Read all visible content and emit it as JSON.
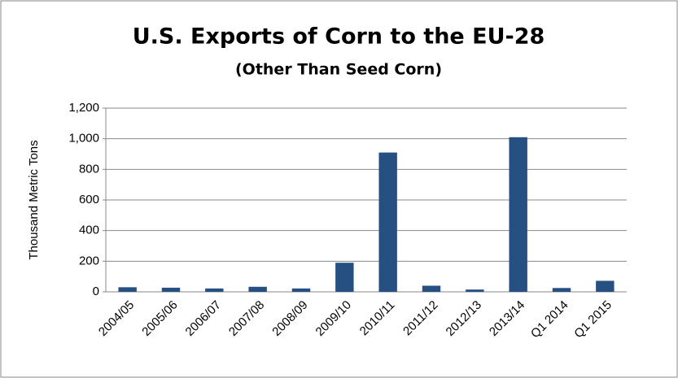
{
  "chart_data": {
    "type": "bar",
    "title": "U.S. Exports of Corn to the EU-28",
    "subtitle": "(Other Than Seed Corn)",
    "y_label": "Thousand Metric Tons",
    "categories": [
      "2004/05",
      "2005/06",
      "2006/07",
      "2007/08",
      "2008/09",
      "2009/10",
      "2010/11",
      "2011/12",
      "2012/13",
      "2013/14",
      "Q1 2014",
      "Q1 2015"
    ],
    "values": [
      30,
      27,
      22,
      33,
      22,
      190,
      910,
      40,
      15,
      1010,
      25,
      72
    ],
    "color": "#264f82",
    "ylim": [
      0,
      1200
    ],
    "yticks": [
      0,
      200,
      400,
      600,
      800,
      {
        "value": 1000,
        "label": "1,000"
      },
      {
        "value": 1200,
        "label": "1,200"
      }
    ],
    "grid": true
  }
}
